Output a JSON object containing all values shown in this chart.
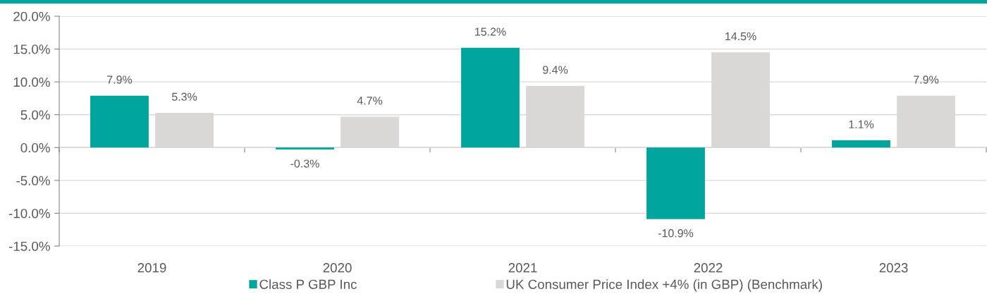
{
  "chart_data": {
    "type": "bar",
    "categories": [
      "2019",
      "2020",
      "2021",
      "2022",
      "2023"
    ],
    "series": [
      {
        "name": "Class P GBP Inc",
        "color": "#00a69d",
        "values": [
          7.9,
          -0.3,
          15.2,
          -10.9,
          1.1
        ],
        "value_labels": [
          "7.9%",
          "-0.3%",
          "15.2%",
          "-10.9%",
          "1.1%"
        ]
      },
      {
        "name": "UK Consumer Price Index +4% (in GBP) (Benchmark)",
        "color": "#d9d8d6",
        "values": [
          5.3,
          4.7,
          9.4,
          14.5,
          7.9
        ],
        "value_labels": [
          "5.3%",
          "4.7%",
          "9.4%",
          "14.5%",
          "7.9%"
        ]
      }
    ],
    "ylim": [
      -15,
      20
    ],
    "yticks": [
      {
        "value": -15,
        "label": "-15.0%"
      },
      {
        "value": -10,
        "label": "-10.0%"
      },
      {
        "value": -5,
        "label": "-5.0%"
      },
      {
        "value": 0,
        "label": "0.0%"
      },
      {
        "value": 5,
        "label": "5.0%"
      },
      {
        "value": 10,
        "label": "10.0%"
      },
      {
        "value": 15,
        "label": "15.0%"
      },
      {
        "value": 20,
        "label": "20.0%"
      }
    ],
    "grid": "y",
    "legend": "bottom"
  }
}
